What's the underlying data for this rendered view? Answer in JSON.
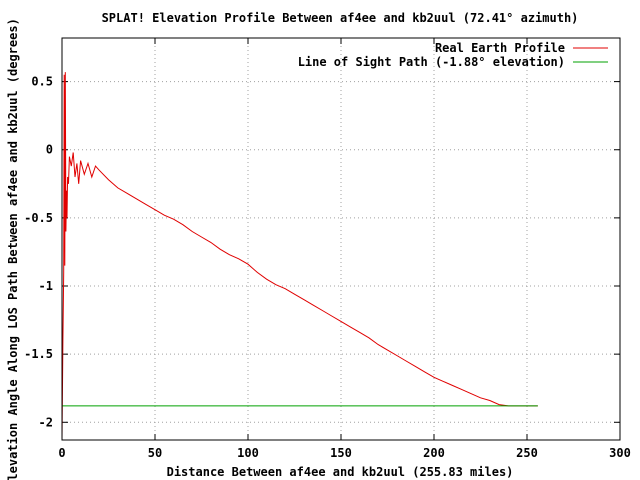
{
  "chart_data": {
    "type": "line",
    "title": "SPLAT! Elevation Profile Between af4ee and kb2uul (72.41° azimuth)",
    "xlabel": "Distance Between af4ee and kb2uul (255.83 miles)",
    "ylabel": "Elevation Angle Along LOS Path Between af4ee and kb2uul (degrees)",
    "xlim": [
      0,
      300
    ],
    "ylim": [
      -2.13,
      0.82
    ],
    "xticks": [
      0,
      50,
      100,
      150,
      200,
      250,
      300
    ],
    "yticks": [
      0.5,
      0,
      -0.5,
      -1,
      -1.5,
      -2
    ],
    "ytick_labels": [
      "0.5",
      "0",
      "-0.5",
      "-1",
      "-1.5",
      "-2"
    ],
    "grid": true,
    "legend_position": "top-right",
    "series": [
      {
        "name": "Real Earth Profile",
        "color": "#e00000",
        "x": [
          0,
          0.5,
          0.9,
          1.2,
          1.5,
          1.8,
          2.1,
          2.4,
          2.7,
          3.0,
          3.5,
          4,
          5,
          6,
          7,
          8,
          9,
          10,
          12,
          14,
          16,
          18,
          20,
          25,
          30,
          35,
          40,
          45,
          50,
          55,
          60,
          65,
          70,
          75,
          80,
          85,
          90,
          95,
          100,
          105,
          110,
          115,
          120,
          125,
          130,
          135,
          140,
          145,
          150,
          155,
          160,
          165,
          170,
          175,
          180,
          185,
          190,
          195,
          200,
          205,
          210,
          215,
          220,
          225,
          230,
          235,
          240,
          245,
          250,
          255.83
        ],
        "y": [
          -2.13,
          -1.4,
          -0.9,
          0.55,
          -0.85,
          0.57,
          -0.6,
          -0.3,
          -0.5,
          -0.2,
          -0.25,
          -0.05,
          -0.12,
          -0.02,
          -0.2,
          -0.1,
          -0.25,
          -0.08,
          -0.18,
          -0.1,
          -0.2,
          -0.12,
          -0.15,
          -0.22,
          -0.28,
          -0.32,
          -0.36,
          -0.4,
          -0.44,
          -0.48,
          -0.51,
          -0.55,
          -0.6,
          -0.64,
          -0.68,
          -0.73,
          -0.77,
          -0.8,
          -0.84,
          -0.9,
          -0.95,
          -0.99,
          -1.02,
          -1.06,
          -1.1,
          -1.14,
          -1.18,
          -1.22,
          -1.26,
          -1.3,
          -1.34,
          -1.38,
          -1.43,
          -1.47,
          -1.51,
          -1.55,
          -1.59,
          -1.63,
          -1.67,
          -1.7,
          -1.73,
          -1.76,
          -1.79,
          -1.82,
          -1.84,
          -1.87,
          -1.88,
          -1.88,
          -1.88,
          -1.88
        ]
      },
      {
        "name": "Line of Sight Path (-1.88° elevation)",
        "color": "#00a000",
        "x": [
          0,
          255.83
        ],
        "y": [
          -1.88,
          -1.88
        ]
      }
    ]
  }
}
